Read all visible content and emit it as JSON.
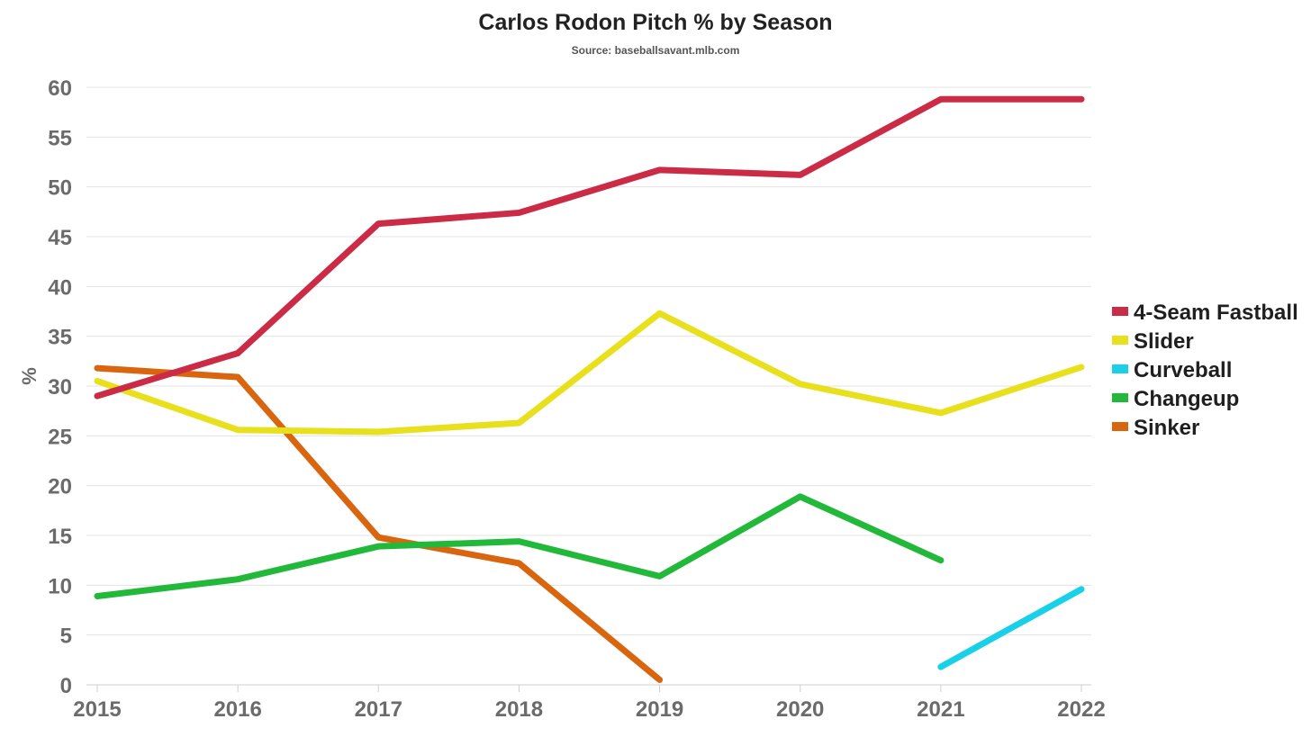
{
  "chart_data": {
    "type": "line",
    "title": "Carlos Rodon Pitch % by Season",
    "subtitle": "Source: baseballsavant.mlb.com",
    "xlabel": "",
    "ylabel": "%",
    "categories": [
      "2015",
      "2016",
      "2017",
      "2018",
      "2019",
      "2020",
      "2021",
      "2022"
    ],
    "ylim": [
      0,
      60
    ],
    "yticks": [
      0,
      5,
      10,
      15,
      20,
      25,
      30,
      35,
      40,
      45,
      50,
      55,
      60
    ],
    "grid": true,
    "legend_position": "right",
    "series": [
      {
        "name": "4-Seam Fastball",
        "color": "#cc2b45",
        "values": [
          29.0,
          33.3,
          46.3,
          47.4,
          51.7,
          51.2,
          58.8,
          58.8
        ]
      },
      {
        "name": "Slider",
        "color": "#e8e01c",
        "values": [
          30.5,
          25.6,
          25.4,
          26.3,
          37.3,
          30.2,
          27.3,
          31.9
        ]
      },
      {
        "name": "Curveball",
        "color": "#18d0e8",
        "values": [
          null,
          null,
          null,
          null,
          null,
          null,
          1.8,
          9.6
        ]
      },
      {
        "name": "Changeup",
        "color": "#22b83a",
        "values": [
          8.9,
          10.6,
          13.9,
          14.4,
          10.9,
          18.9,
          12.5,
          null
        ]
      },
      {
        "name": "Sinker",
        "color": "#d9650f",
        "values": [
          31.8,
          30.9,
          14.8,
          12.2,
          0.5,
          null,
          null,
          null
        ]
      }
    ]
  }
}
